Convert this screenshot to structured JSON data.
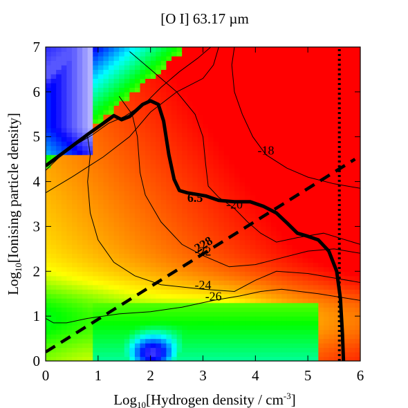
{
  "chart_data": {
    "type": "heatmap",
    "title": "[O I] 63.17 µm",
    "xlabel_main": "Log",
    "xlabel_sub": "10",
    "xlabel_rest": "[Hydrogen density / cm",
    "xlabel_sup": "-3",
    "xlabel_end": "]",
    "ylabel_main": "Log",
    "ylabel_sub": "10",
    "ylabel_rest": "[Ionising particle density]",
    "xlim": [
      0,
      6
    ],
    "ylim": [
      0,
      7
    ],
    "xticks": [
      0,
      1,
      2,
      3,
      4,
      5,
      6
    ],
    "yticks": [
      0,
      1,
      2,
      3,
      4,
      5,
      6,
      7
    ],
    "colormap": [
      "#ffffff",
      "#0000ff",
      "#00ffff",
      "#00ff00",
      "#ffff00",
      "#ff8000",
      "#ff0000"
    ],
    "contours": [
      {
        "label": "-18",
        "points": [
          [
            3.6,
            7.0
          ],
          [
            3.55,
            6.6
          ],
          [
            3.6,
            6.0
          ],
          [
            3.75,
            5.5
          ],
          [
            3.95,
            5.0
          ],
          [
            4.2,
            4.6
          ],
          [
            4.6,
            4.3
          ],
          [
            5.0,
            4.1
          ],
          [
            5.5,
            3.95
          ],
          [
            6.0,
            3.85
          ]
        ]
      },
      {
        "label": "-20",
        "points": [
          [
            1.6,
            6.9
          ],
          [
            2.0,
            6.5
          ],
          [
            2.5,
            6.0
          ],
          [
            2.85,
            5.5
          ],
          [
            3.0,
            5.0
          ],
          [
            3.05,
            4.4
          ],
          [
            3.1,
            3.9
          ],
          [
            3.3,
            3.65
          ],
          [
            3.6,
            3.4
          ],
          [
            3.85,
            3.1
          ],
          [
            4.1,
            2.85
          ],
          [
            4.4,
            2.65
          ],
          [
            4.8,
            2.75
          ],
          [
            5.3,
            2.85
          ],
          [
            6.0,
            2.6
          ]
        ]
      },
      {
        "label": "-22",
        "points": [
          [
            1.4,
            5.9
          ],
          [
            1.65,
            5.5
          ],
          [
            1.75,
            5.0
          ],
          [
            1.8,
            4.2
          ],
          [
            1.9,
            3.7
          ],
          [
            2.2,
            3.1
          ],
          [
            2.6,
            2.6
          ],
          [
            3.0,
            2.35
          ],
          [
            3.5,
            2.1
          ],
          [
            4.0,
            2.15
          ],
          [
            4.5,
            2.3
          ],
          [
            5.0,
            2.45
          ],
          [
            5.5,
            2.5
          ],
          [
            6.0,
            2.4
          ]
        ]
      },
      {
        "label": "-24",
        "points": [
          [
            0.8,
            5.0
          ],
          [
            0.85,
            4.6
          ],
          [
            0.8,
            4.0
          ],
          [
            0.85,
            3.3
          ],
          [
            1.0,
            2.7
          ],
          [
            1.3,
            2.2
          ],
          [
            1.7,
            1.9
          ],
          [
            2.2,
            1.7
          ],
          [
            3.0,
            1.6
          ],
          [
            3.6,
            1.55
          ],
          [
            4.0,
            1.8
          ],
          [
            4.4,
            2.0
          ],
          [
            5.0,
            1.95
          ],
          [
            5.5,
            1.85
          ],
          [
            6.0,
            1.75
          ]
        ]
      },
      {
        "label": "-26",
        "points": [
          [
            0.0,
            0.95
          ],
          [
            0.15,
            0.85
          ],
          [
            0.4,
            0.85
          ],
          [
            0.8,
            0.95
          ],
          [
            1.4,
            1.05
          ],
          [
            2.0,
            1.1
          ],
          [
            2.6,
            1.2
          ],
          [
            3.2,
            1.35
          ],
          [
            3.7,
            1.45
          ],
          [
            4.1,
            1.55
          ],
          [
            4.5,
            1.6
          ],
          [
            5.2,
            1.5
          ],
          [
            6.0,
            1.35
          ]
        ]
      },
      {
        "label": "",
        "points": [
          [
            0.0,
            4.25
          ],
          [
            0.4,
            4.7
          ],
          [
            0.9,
            5.05
          ],
          [
            1.2,
            5.3
          ],
          [
            1.5,
            5.45
          ],
          [
            1.9,
            5.75
          ],
          [
            2.2,
            6.1
          ],
          [
            2.55,
            6.45
          ],
          [
            2.9,
            6.75
          ],
          [
            3.15,
            7.0
          ]
        ]
      },
      {
        "label": "",
        "points": [
          [
            0.0,
            3.75
          ],
          [
            0.5,
            4.1
          ],
          [
            1.1,
            4.55
          ],
          [
            1.6,
            5.0
          ],
          [
            2.0,
            5.55
          ],
          [
            2.5,
            6.0
          ],
          [
            3.0,
            6.3
          ],
          [
            3.2,
            6.6
          ],
          [
            3.3,
            7.0
          ]
        ]
      }
    ],
    "thick_curve_label": "6.5",
    "thick_curve": [
      [
        0.0,
        4.35
      ],
      [
        0.4,
        4.7
      ],
      [
        0.8,
        5.05
      ],
      [
        1.1,
        5.3
      ],
      [
        1.3,
        5.47
      ],
      [
        1.45,
        5.38
      ],
      [
        1.6,
        5.45
      ],
      [
        1.85,
        5.72
      ],
      [
        2.0,
        5.8
      ],
      [
        2.15,
        5.72
      ],
      [
        2.25,
        5.35
      ],
      [
        2.35,
        4.6
      ],
      [
        2.45,
        4.05
      ],
      [
        2.55,
        3.8
      ],
      [
        2.7,
        3.75
      ],
      [
        2.85,
        3.72
      ],
      [
        3.05,
        3.68
      ],
      [
        3.3,
        3.58
      ],
      [
        3.6,
        3.55
      ],
      [
        3.9,
        3.55
      ],
      [
        4.15,
        3.45
      ],
      [
        4.4,
        3.3
      ],
      [
        4.6,
        3.08
      ],
      [
        4.8,
        2.85
      ],
      [
        5.0,
        2.78
      ],
      [
        5.2,
        2.7
      ],
      [
        5.4,
        2.45
      ],
      [
        5.55,
        2.0
      ],
      [
        5.62,
        1.4
      ],
      [
        5.66,
        0.6
      ],
      [
        5.68,
        0.0
      ]
    ],
    "dashed_line_label": "228",
    "dashed_line": [
      [
        0.0,
        0.2
      ],
      [
        5.9,
        4.5
      ]
    ],
    "dotted_line": [
      [
        5.6,
        0.0
      ],
      [
        5.6,
        7.0
      ]
    ]
  }
}
